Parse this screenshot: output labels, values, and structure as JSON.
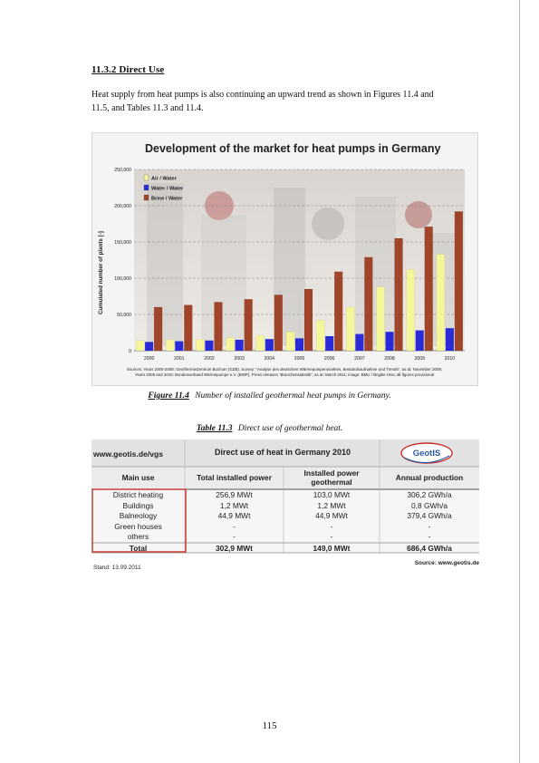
{
  "section": {
    "heading": "11.3.2  Direct Use"
  },
  "paragraph": "Heat supply from heat pumps is also continuing an upward trend as shown in Figures 11.4 and 11.5, and Tables 11.3 and 11.4.",
  "figure": {
    "caption_label": "Figure 11.4",
    "caption_text": "Number of installed geothermal heat pumps in Germany.",
    "source_note_line1": "Sources: Years 2000-2008: GeothermieZentrum Bochum (GZB), Survey: \"Analyse des deutschen Wärmepumpenmarktes, Bestandsaufnahme und Trends\", as at: November 2009;",
    "source_note_line2": "Years 2009 and 2010: Bundesverband Wärmepumpe e.V. (BWP), Press releases \"Branchenstatistik\", as at: March 2011; image: BMU / Brigitte Hiss; all figures provisional"
  },
  "chart_data": {
    "type": "bar",
    "title": "Development of the market for heat pumps in Germany",
    "ylabel": "Cumulated number of plants [-]",
    "xlabel": "",
    "ylim": [
      0,
      250000
    ],
    "yticks": [
      "0",
      "50,000",
      "100,000",
      "150,000",
      "200,000",
      "250,000"
    ],
    "categories": [
      "2000",
      "2001",
      "2002",
      "2003",
      "2004",
      "2005",
      "2006",
      "2007",
      "2008",
      "2009",
      "2010"
    ],
    "series": [
      {
        "name": "Air / Water",
        "color": "#f5f59a",
        "values": [
          14000,
          15000,
          16000,
          18000,
          21000,
          26000,
          42000,
          60000,
          88000,
          112000,
          133000
        ]
      },
      {
        "name": "Water / Water",
        "color": "#2a2ad8",
        "values": [
          12000,
          13000,
          14000,
          15000,
          16000,
          17000,
          20000,
          23000,
          26000,
          28000,
          31000
        ]
      },
      {
        "name": "Brine / Water",
        "color": "#a0442a",
        "values": [
          60000,
          63000,
          67000,
          71000,
          77000,
          85000,
          109000,
          129000,
          155000,
          171000,
          192000
        ]
      }
    ],
    "grid": true,
    "legend": "top-left"
  },
  "table": {
    "caption_label": "Table 11.3",
    "caption_text": "Direct use of geothermal heat.",
    "site": "www.geotis.de/vgs",
    "title": "Direct use of heat in Germany 2010",
    "logo_text": "GeotIS",
    "headers": [
      "Main use",
      "Total installed power",
      "Installed power geothermal",
      "Annual production"
    ],
    "rows": [
      [
        "District heating",
        "256,9 MWt",
        "103,0 MWt",
        "306,2 GWh/a"
      ],
      [
        "Buildings",
        "1,2 MWt",
        "1,2 MWt",
        "0,8 GWh/a"
      ],
      [
        "Balneology",
        "44,9 MWt",
        "44,9 MWt",
        "379,4 GWh/a"
      ],
      [
        "Green houses",
        "-",
        "-",
        "-"
      ],
      [
        "others",
        "-",
        "-",
        "-"
      ],
      [
        "Total",
        "302,9 MWt",
        "149,0 MWt",
        "686,4 GWh/a"
      ]
    ],
    "stand": "Stand: 13.09.2011",
    "source": "Source: www.geotis.de"
  },
  "page_number": "115"
}
